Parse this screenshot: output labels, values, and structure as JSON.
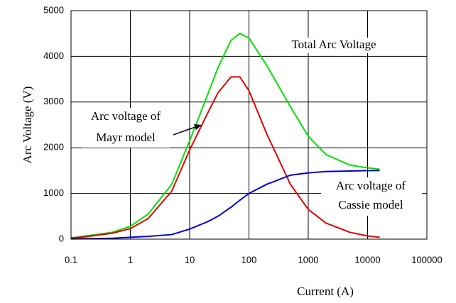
{
  "chart_data": {
    "type": "line",
    "xlabel": "Current (A)",
    "ylabel": "Arc Voltage (V)",
    "xlog": true,
    "grid": true,
    "xlim": [
      0.1,
      100000
    ],
    "xticks": [
      0.1,
      1,
      10,
      100,
      1000,
      10000,
      100000
    ],
    "ylim": [
      0,
      5000
    ],
    "yticks": [
      0,
      1000,
      2000,
      3000,
      4000,
      5000
    ],
    "x": [
      0.1,
      0.2,
      0.5,
      1,
      2,
      5,
      10,
      20,
      30,
      50,
      70,
      100,
      200,
      500,
      1000,
      2000,
      5000,
      10000,
      16000
    ],
    "series": [
      {
        "name": "Total Arc Voltage",
        "color": "#00e000",
        "values": [
          30,
          80,
          150,
          280,
          550,
          1200,
          2150,
          3150,
          3750,
          4350,
          4500,
          4400,
          3800,
          2900,
          2250,
          1850,
          1620,
          1560,
          1530
        ]
      },
      {
        "name": "Mayr model",
        "color": "#e00000",
        "values": [
          20,
          60,
          130,
          230,
          450,
          1050,
          1950,
          2750,
          3200,
          3550,
          3550,
          3250,
          2300,
          1200,
          650,
          350,
          150,
          70,
          40
        ]
      },
      {
        "name": "Cassie model",
        "color": "#0000d0",
        "values": [
          5,
          10,
          20,
          40,
          60,
          100,
          220,
          380,
          500,
          700,
          850,
          1000,
          1200,
          1400,
          1450,
          1480,
          1490,
          1500,
          1500
        ]
      }
    ],
    "annotations": [
      "Total Arc Voltage",
      "Arc voltage of",
      "Mayr model",
      "Arc voltage of",
      "Cassie model"
    ]
  }
}
